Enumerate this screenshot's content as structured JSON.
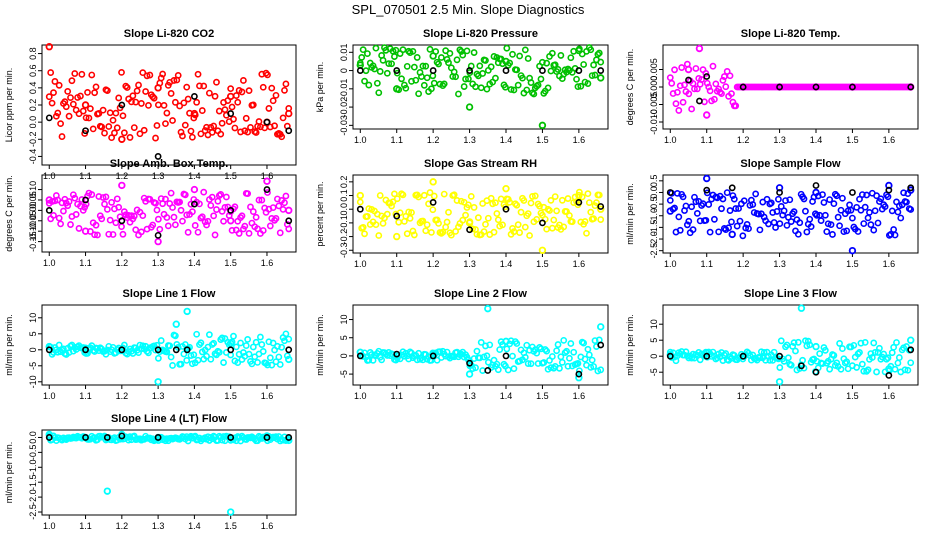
{
  "title": "SPL_070501  2.5 Min. Slope Diagnostics",
  "chart_data": [
    {
      "type": "scatter",
      "title": "Slope Li-820 CO2",
      "ylabel": "Licor ppm per min.",
      "color": "#ff0000",
      "xlim": [
        0.98,
        1.68
      ],
      "ylim": [
        -0.5,
        0.9
      ],
      "xticks": [
        "1.0",
        "1.1",
        "1.2",
        "1.3",
        "1.4",
        "1.5",
        "1.6"
      ],
      "yticks": [
        "-0.4",
        "-0.2",
        "0.0",
        "0.2",
        "0.4",
        "0.6",
        "0.8"
      ],
      "x": [
        1.0,
        1.1,
        1.2,
        1.3,
        1.4,
        1.5,
        1.6,
        1.66
      ],
      "y": [
        0.88,
        0.2,
        -0.2,
        0.4,
        0.1,
        0.3,
        0.0,
        0.1
      ],
      "black_y": [
        0.05,
        -0.1,
        0.2,
        -0.4,
        0.3,
        0.1,
        0.0,
        -0.1
      ]
    },
    {
      "type": "scatter",
      "title": "Slope Li-820 Pressure",
      "ylabel": "kPa per min.",
      "color": "#00c000",
      "xlim": [
        0.98,
        1.68
      ],
      "ylim": [
        -0.032,
        0.014
      ],
      "xticks": [
        "1.0",
        "1.1",
        "1.2",
        "1.3",
        "1.4",
        "1.5",
        "1.6"
      ],
      "yticks": [
        "-0.03",
        "-0.02",
        "-0.01",
        "0",
        "0.01"
      ],
      "x": [
        1.0,
        1.1,
        1.2,
        1.3,
        1.4,
        1.5,
        1.6,
        1.66
      ],
      "y": [
        0.003,
        -0.01,
        0.008,
        -0.02,
        0.005,
        -0.03,
        0.011,
        -0.004
      ],
      "black_y": [
        0.0,
        0.0,
        0.0,
        0.0,
        0.0,
        0.0,
        0.0,
        0.0
      ]
    },
    {
      "type": "scatter",
      "title": "Slope Li-820 Temp.",
      "ylabel": "degrees C per min.",
      "color": "#ff00ff",
      "xlim": [
        0.98,
        1.68
      ],
      "ylim": [
        -0.012,
        0.012
      ],
      "xticks": [
        "1.0",
        "1.1",
        "1.2",
        "1.3",
        "1.4",
        "1.5",
        "1.6"
      ],
      "yticks": [
        "-0.010",
        "-0.005",
        "0.000",
        "0.005"
      ],
      "x": [
        1.05,
        1.08,
        1.1,
        1.2,
        1.3,
        1.4,
        1.5,
        1.66
      ],
      "y": [
        0.005,
        0.011,
        -0.008,
        0.0,
        0.0,
        0.0,
        0.0,
        0.0
      ],
      "black_y": [
        0.002,
        -0.004,
        0.003,
        0.0,
        0.0,
        0.0,
        0.0,
        0.0
      ]
    },
    {
      "type": "scatter",
      "title": "Slope Amb. Box Temp.",
      "ylabel": "degrees C per min.",
      "color": "#ff00ff",
      "xlim": [
        0.98,
        1.68
      ],
      "ylim": [
        -0.2,
        0.17
      ],
      "xticks": [
        "1.0",
        "1.1",
        "1.2",
        "1.3",
        "1.4",
        "1.5",
        "1.6"
      ],
      "yticks": [
        "-0.15",
        "-0.10",
        "-0.05",
        "0.00",
        "0.05",
        "0.10"
      ],
      "x": [
        1.0,
        1.1,
        1.2,
        1.3,
        1.4,
        1.5,
        1.6,
        1.66
      ],
      "y": [
        0.05,
        -0.1,
        0.12,
        -0.15,
        0.1,
        -0.05,
        0.14,
        0.0
      ],
      "black_y": [
        0.0,
        0.05,
        -0.05,
        -0.12,
        0.03,
        0.0,
        0.1,
        -0.05
      ]
    },
    {
      "type": "scatter",
      "title": "Slope Gas Stream RH",
      "ylabel": "percent per min.",
      "color": "#ffff00",
      "xlim": [
        0.98,
        1.68
      ],
      "ylim": [
        -0.32,
        0.25
      ],
      "xticks": [
        "1.0",
        "1.1",
        "1.2",
        "1.3",
        "1.4",
        "1.5",
        "1.6"
      ],
      "yticks": [
        "-0.3",
        "-0.2",
        "-0.1",
        "0.0",
        "0.1",
        "0.2"
      ],
      "x": [
        1.0,
        1.1,
        1.2,
        1.3,
        1.4,
        1.5,
        1.6,
        1.66
      ],
      "y": [
        0.1,
        -0.2,
        0.2,
        -0.1,
        0.15,
        -0.3,
        0.1,
        0.0
      ],
      "black_y": [
        0.0,
        -0.05,
        0.05,
        -0.15,
        0.0,
        -0.1,
        0.05,
        0.02
      ]
    },
    {
      "type": "scatter",
      "title": "Slope Sample Flow",
      "ylabel": "ml/min per min.",
      "color": "#0000ff",
      "xlim": [
        0.98,
        1.68
      ],
      "ylim": [
        -2.6,
        0.75
      ],
      "xticks": [
        "1.0",
        "1.1",
        "1.2",
        "1.3",
        "1.4",
        "1.5",
        "1.6"
      ],
      "yticks": [
        "-2.5",
        "-2.0",
        "-1.5",
        "-1.0",
        "-0.5",
        "0.0",
        "0.5"
      ],
      "x": [
        1.0,
        1.1,
        1.17,
        1.3,
        1.4,
        1.5,
        1.6,
        1.66
      ],
      "y": [
        -0.8,
        0.6,
        -1.8,
        0.2,
        0.0,
        -2.5,
        0.3,
        0.1
      ],
      "black_y": [
        0.0,
        0.1,
        0.2,
        0.0,
        0.3,
        0.0,
        0.1,
        0.2
      ]
    },
    {
      "type": "scatter",
      "title": "Slope Line 1 Flow",
      "ylabel": "ml/min per min.",
      "color": "#00ffff",
      "xlim": [
        0.98,
        1.68
      ],
      "ylim": [
        -11,
        14
      ],
      "xticks": [
        "1.0",
        "1.1",
        "1.2",
        "1.3",
        "1.4",
        "1.5",
        "1.6"
      ],
      "yticks": [
        "-10",
        "-5",
        "0",
        "5",
        "10"
      ],
      "x": [
        1.0,
        1.1,
        1.2,
        1.3,
        1.35,
        1.38,
        1.5,
        1.66
      ],
      "y": [
        1.0,
        0.5,
        0.0,
        -10,
        8,
        12,
        2,
        -3
      ],
      "black_y": [
        0.0,
        0.0,
        0.0,
        0.0,
        0.0,
        0.0,
        0.0,
        0.0
      ]
    },
    {
      "type": "scatter",
      "title": "Slope Line 2 Flow",
      "ylabel": "ml/min per min.",
      "color": "#00ffff",
      "xlim": [
        0.98,
        1.68
      ],
      "ylim": [
        -8,
        14
      ],
      "xticks": [
        "1.0",
        "1.1",
        "1.2",
        "1.3",
        "1.4",
        "1.5",
        "1.6"
      ],
      "yticks": [
        "-5",
        "0",
        "5",
        "10"
      ],
      "x": [
        1.0,
        1.1,
        1.2,
        1.3,
        1.35,
        1.4,
        1.6,
        1.66
      ],
      "y": [
        1.0,
        0.0,
        0.5,
        -5,
        13,
        4,
        -6,
        8
      ],
      "black_y": [
        0.0,
        0.5,
        0.0,
        -2,
        -4,
        0.0,
        -5,
        3
      ]
    },
    {
      "type": "scatter",
      "title": "Slope Line 3 Flow",
      "ylabel": "ml/min per min.",
      "color": "#00ffff",
      "xlim": [
        0.98,
        1.68
      ],
      "ylim": [
        -9,
        16
      ],
      "xticks": [
        "1.0",
        "1.1",
        "1.2",
        "1.3",
        "1.4",
        "1.5",
        "1.6"
      ],
      "yticks": [
        "-5",
        "0",
        "5",
        "10"
      ],
      "x": [
        1.0,
        1.1,
        1.2,
        1.3,
        1.36,
        1.4,
        1.6,
        1.66
      ],
      "y": [
        0.5,
        1.0,
        0.0,
        -8,
        15,
        3,
        -4,
        5
      ],
      "black_y": [
        0.0,
        0.0,
        0.0,
        0.0,
        -3,
        -5,
        -6,
        2
      ]
    },
    {
      "type": "scatter",
      "title": "Slope Line 4 (LT) Flow",
      "ylabel": "ml/min per min.",
      "color": "#00ffff",
      "xlim": [
        0.98,
        1.68
      ],
      "ylim": [
        -2.6,
        0.25
      ],
      "xticks": [
        "1.0",
        "1.1",
        "1.2",
        "1.3",
        "1.4",
        "1.5",
        "1.6"
      ],
      "yticks": [
        "-2.5",
        "-2.0",
        "-1.5",
        "-1.0",
        "-0.5",
        "0.0"
      ],
      "x": [
        1.0,
        1.1,
        1.16,
        1.2,
        1.3,
        1.5,
        1.6,
        1.66
      ],
      "y": [
        0.1,
        0.0,
        -1.8,
        0.1,
        0.0,
        -2.5,
        0.05,
        -0.1
      ],
      "black_y": [
        0.0,
        0.0,
        0.0,
        0.05,
        0.0,
        0.0,
        0.0,
        0.0
      ]
    }
  ]
}
